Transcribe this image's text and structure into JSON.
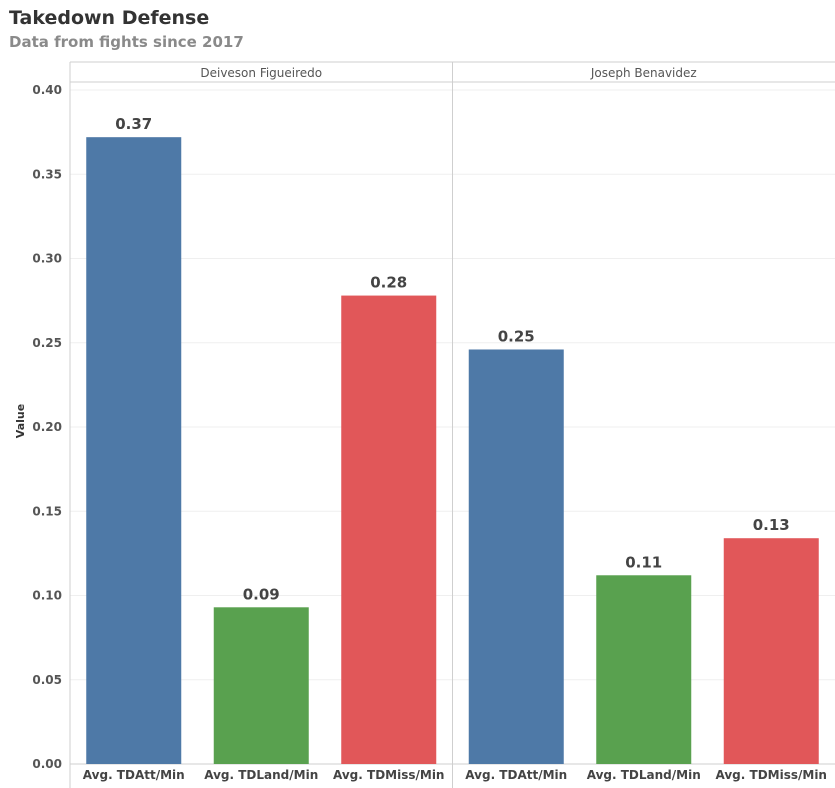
{
  "chart_data": {
    "type": "bar",
    "title": "Takedown Defense",
    "subtitle": "Data from fights since 2017",
    "ylabel": "Value",
    "ylim": [
      0,
      0.4
    ],
    "yticks": [
      "0.00",
      "0.05",
      "0.10",
      "0.15",
      "0.20",
      "0.25",
      "0.30",
      "0.35",
      "0.40"
    ],
    "categories": [
      "Avg. TDAtt/Min",
      "Avg. TDLand/Min",
      "Avg. TDMiss/Min"
    ],
    "colors": [
      "#4e79a7",
      "#59a14f",
      "#e15759"
    ],
    "grid": true,
    "panels": [
      {
        "name": "Deiveson Figueiredo",
        "values": [
          0.372,
          0.093,
          0.278
        ],
        "labels": [
          "0.37",
          "0.09",
          "0.28"
        ]
      },
      {
        "name": "Joseph Benavidez",
        "values": [
          0.246,
          0.112,
          0.134
        ],
        "labels": [
          "0.25",
          "0.11",
          "0.13"
        ]
      }
    ]
  }
}
